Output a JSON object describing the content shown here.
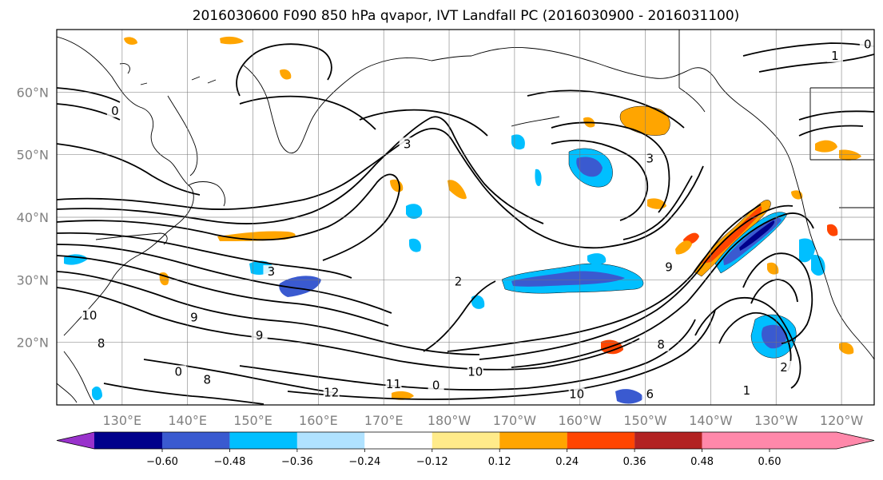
{
  "title": "2016030600 F090 850 hPa qvapor, IVT Landfall PC (2016030900 - 2016031100)",
  "map": {
    "lon_range": [
      120,
      245
    ],
    "lat_range": [
      10,
      70
    ],
    "lon_ticks": [
      {
        "lon": 130,
        "label": "130°E"
      },
      {
        "lon": 140,
        "label": "140°E"
      },
      {
        "lon": 150,
        "label": "150°E"
      },
      {
        "lon": 160,
        "label": "160°E"
      },
      {
        "lon": 170,
        "label": "170°E"
      },
      {
        "lon": 180,
        "label": "180°W"
      },
      {
        "lon": 190,
        "label": "170°W"
      },
      {
        "lon": 200,
        "label": "160°W"
      },
      {
        "lon": 210,
        "label": "150°W"
      },
      {
        "lon": 220,
        "label": "140°W"
      },
      {
        "lon": 230,
        "label": "130°W"
      },
      {
        "lon": 240,
        "label": "120°W"
      }
    ],
    "lat_ticks": [
      {
        "lat": 20,
        "label": "20°N"
      },
      {
        "lat": 30,
        "label": "30°N"
      },
      {
        "lat": 40,
        "label": "40°N"
      },
      {
        "lat": 50,
        "label": "50°N"
      },
      {
        "lat": 60,
        "label": "60°N"
      }
    ],
    "gridlines": true,
    "contour_labels": [
      {
        "text": "12",
        "lon": 162,
        "lat": 11.5
      },
      {
        "text": "11",
        "lon": 171.5,
        "lat": 12.8
      },
      {
        "text": "10",
        "lon": 184,
        "lat": 14.8
      },
      {
        "text": "10",
        "lon": 199.5,
        "lat": 11.2
      },
      {
        "text": "10",
        "lon": 125,
        "lat": 23.8
      },
      {
        "text": "9",
        "lon": 141,
        "lat": 23.5
      },
      {
        "text": "9",
        "lon": 151,
        "lat": 20.6
      },
      {
        "text": "8",
        "lon": 126.8,
        "lat": 19.3
      },
      {
        "text": "8",
        "lon": 143,
        "lat": 13.5
      },
      {
        "text": "0",
        "lon": 138.6,
        "lat": 14.8
      },
      {
        "text": "3",
        "lon": 152.8,
        "lat": 30.8
      },
      {
        "text": "3",
        "lon": 173.6,
        "lat": 51.2
      },
      {
        "text": "3",
        "lon": 210.7,
        "lat": 48.9
      },
      {
        "text": "2",
        "lon": 181.4,
        "lat": 29.2
      },
      {
        "text": "2",
        "lon": 231.2,
        "lat": 15.5
      },
      {
        "text": "8",
        "lon": 212.4,
        "lat": 19.1
      },
      {
        "text": "9",
        "lon": 213.6,
        "lat": 31.5
      },
      {
        "text": "6",
        "lon": 210.7,
        "lat": 11.2
      },
      {
        "text": "0",
        "lon": 128.9,
        "lat": 56.5
      },
      {
        "text": "0",
        "lon": 178,
        "lat": 12.6
      },
      {
        "text": "1",
        "lon": 239,
        "lat": 65.3
      },
      {
        "text": "0",
        "lon": 244,
        "lat": 67.1
      },
      {
        "text": "1",
        "lon": 225.5,
        "lat": 11.8
      }
    ]
  },
  "colorbar": {
    "extend": "both",
    "colors": [
      "#9932cc",
      "#00008b",
      "#3a5ad0",
      "#00bfff",
      "#b0e2ff",
      "#ffffff",
      "#ffeb8a",
      "#ffa500",
      "#ff4500",
      "#b22222",
      "#ff88aa"
    ],
    "levels": [
      -0.6,
      -0.48,
      -0.36,
      -0.24,
      -0.12,
      0.12,
      0.24,
      0.36,
      0.48,
      0.6
    ],
    "tick_labels": [
      "−0.60",
      "−0.48",
      "−0.36",
      "−0.24",
      "−0.12",
      "0.12",
      "0.24",
      "0.36",
      "0.48",
      "0.60"
    ]
  }
}
